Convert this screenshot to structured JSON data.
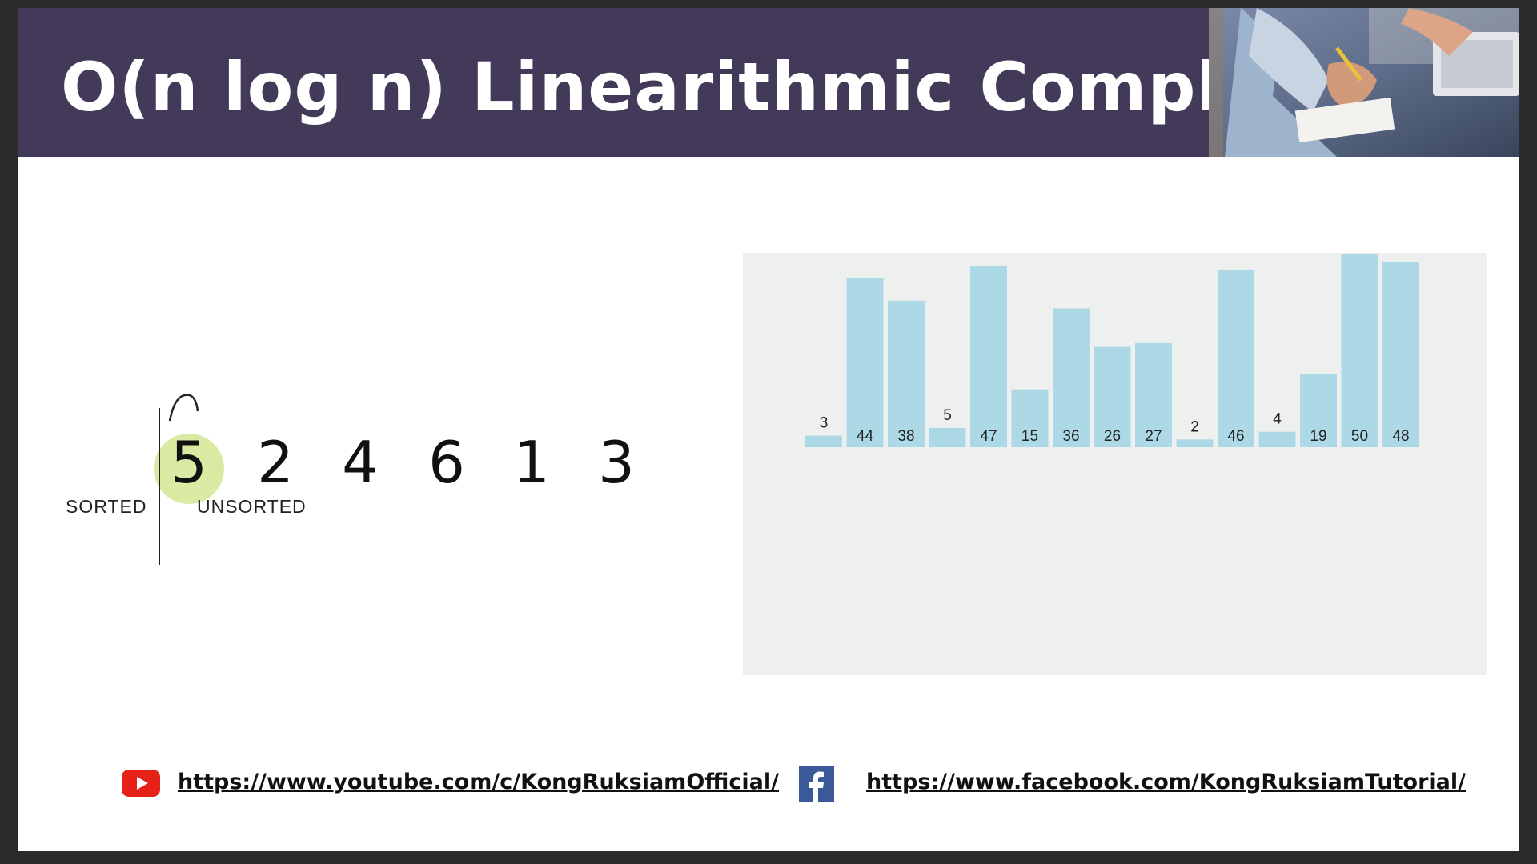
{
  "slide": {
    "title": "O(n log n) Linearithmic Complexity"
  },
  "sort_demo": {
    "digits": [
      "5",
      "2",
      "4",
      "6",
      "1",
      "3"
    ],
    "sorted_label": "SORTED",
    "unsorted_label": "UNSORTED"
  },
  "chart_data": {
    "type": "bar",
    "values": [
      3,
      44,
      38,
      5,
      47,
      15,
      36,
      26,
      27,
      2,
      46,
      4,
      19,
      50,
      48
    ],
    "bar_color": "#add8e6"
  },
  "links": {
    "youtube_icon": "youtube-icon",
    "youtube_url": "https://www.youtube.com/c/KongRuksiamOfficial/",
    "facebook_icon": "facebook-icon",
    "facebook_url": "https://www.facebook.com/KongRuksiamTutorial/"
  },
  "colors": {
    "title_bar": "#433a5a",
    "highlight": "#d9eaa2",
    "youtube_red": "#e62117",
    "facebook_blue": "#3b5998"
  }
}
